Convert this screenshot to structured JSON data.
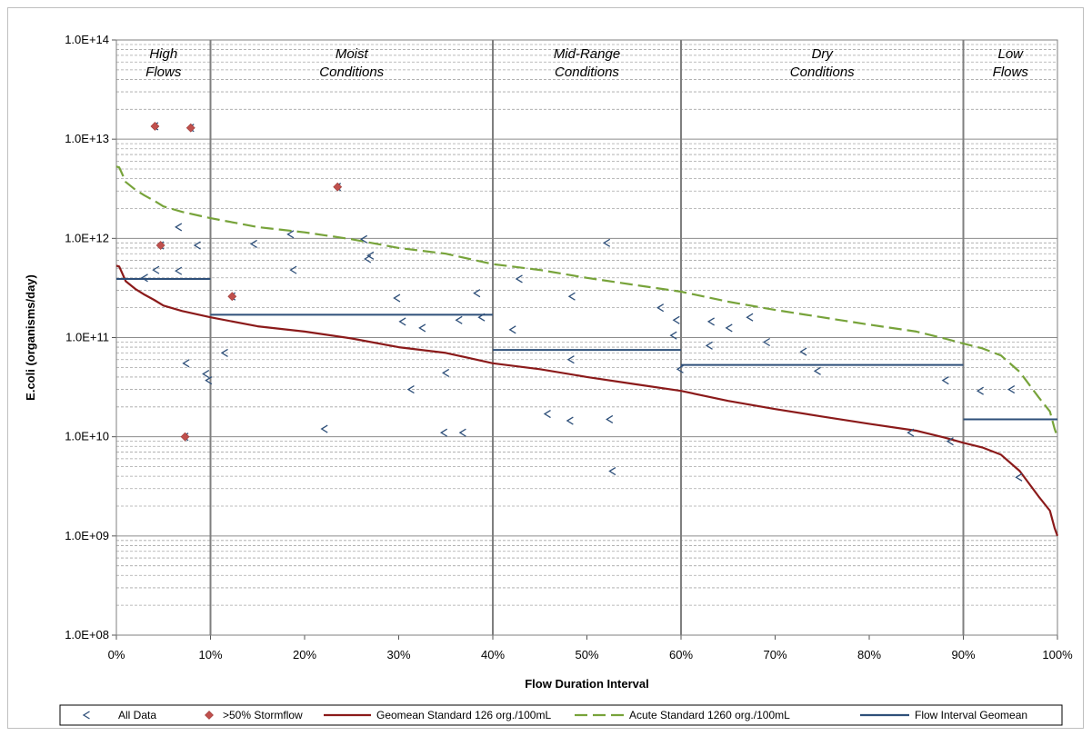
{
  "chart_data": {
    "type": "scatter",
    "xlabel": "Flow Duration Interval",
    "ylabel": "E.coli (organisms/day)",
    "x_ticks": [
      "0%",
      "10%",
      "20%",
      "30%",
      "40%",
      "50%",
      "60%",
      "70%",
      "80%",
      "90%",
      "100%"
    ],
    "y_ticks": [
      "1.0E+08",
      "1.0E+09",
      "1.0E+10",
      "1.0E+11",
      "1.0E+12",
      "1.0E+13",
      "1.0E+14"
    ],
    "xlim": [
      0,
      100
    ],
    "ylim": [
      100000000.0,
      100000000000000.0
    ],
    "y_scale": "log",
    "grid": "log minor horizontal gridlines (dashed), major solid",
    "zones": [
      {
        "name": "High\nFlows",
        "from": 0,
        "to": 10
      },
      {
        "name": "Moist\nConditions",
        "from": 10,
        "to": 40
      },
      {
        "name": "Mid-Range\nConditions",
        "from": 40,
        "to": 60
      },
      {
        "name": "Dry\nConditions",
        "from": 60,
        "to": 90
      },
      {
        "name": "Low\nFlows",
        "from": 90,
        "to": 100
      }
    ],
    "legend_position": "bottom",
    "legend": [
      {
        "name": "All Data",
        "marker": "open-chevron",
        "color": "#2e4f79"
      },
      {
        "name": ">50% Stormflow",
        "marker": "diamond",
        "color": "#c0504d"
      },
      {
        "name": "Geomean Standard 126 org./100mL",
        "marker": "solid-line",
        "color": "#8b1a1a"
      },
      {
        "name": "Acute Standard 1260 org./100mL",
        "marker": "dashed-line",
        "color": "#77a33a"
      },
      {
        "name": "Flow Interval Geomean",
        "marker": "solid-line",
        "color": "#2e4f79"
      }
    ],
    "series": [
      {
        "name": "All Data",
        "points": [
          [
            3,
            400000000000.0
          ],
          [
            4.2,
            480000000000.0
          ],
          [
            4.1,
            13500000000000.0
          ],
          [
            4.7,
            850000000000.0
          ],
          [
            6.6,
            470000000000.0
          ],
          [
            6.6,
            1300000000000.0
          ],
          [
            7.4,
            55000000000.0
          ],
          [
            7.3,
            10000000000.0
          ],
          [
            7.9,
            13000000000000.0
          ],
          [
            8.6,
            850000000000.0
          ],
          [
            9.5,
            43000000000.0
          ],
          [
            9.8,
            37000000000.0
          ],
          [
            11.5,
            70000000000.0
          ],
          [
            12.3,
            260000000000.0
          ],
          [
            14.6,
            880000000000.0
          ],
          [
            18.5,
            1100000000000.0
          ],
          [
            18.8,
            480000000000.0
          ],
          [
            22.1,
            12000000000.0
          ],
          [
            23.5,
            3300000000000.0
          ],
          [
            26.3,
            980000000000.0
          ],
          [
            26.7,
            620000000000.0
          ],
          [
            27,
            670000000000.0
          ],
          [
            29.8,
            250000000000.0
          ],
          [
            30.4,
            145000000000.0
          ],
          [
            31.3,
            30000000000.0
          ],
          [
            32.5,
            125000000000.0
          ],
          [
            34.8,
            11000000000.0
          ],
          [
            35,
            44000000000.0
          ],
          [
            36.4,
            150000000000.0
          ],
          [
            36.8,
            11000000000.0
          ],
          [
            38.3,
            280000000000.0
          ],
          [
            38.8,
            160000000000.0
          ],
          [
            42.1,
            120000000000.0
          ],
          [
            42.8,
            390000000000.0
          ],
          [
            45.8,
            17000000000.0
          ],
          [
            48.2,
            14500000000.0
          ],
          [
            48.3,
            60000000000.0
          ],
          [
            48.4,
            260000000000.0
          ],
          [
            52.1,
            900000000000.0
          ],
          [
            52.4,
            15000000000.0
          ],
          [
            52.7,
            4500000000.0
          ],
          [
            57.8,
            200000000000.0
          ],
          [
            59.2,
            105000000000.0
          ],
          [
            59.5,
            150000000000.0
          ],
          [
            59.9,
            48000000000.0
          ],
          [
            63,
            83000000000.0
          ],
          [
            63.2,
            145000000000.0
          ],
          [
            65.1,
            125000000000.0
          ],
          [
            67.3,
            160000000000.0
          ],
          [
            69.1,
            90000000000.0
          ],
          [
            73,
            72000000000.0
          ],
          [
            74.5,
            46000000000.0
          ],
          [
            84.4,
            11000000000.0
          ],
          [
            88.1,
            37000000000.0
          ],
          [
            88.6,
            9000000000.0
          ],
          [
            91.8,
            29000000000.0
          ],
          [
            95.1,
            30000000000.0
          ],
          [
            95.9,
            3900000000.0
          ]
        ]
      },
      {
        "name": ">50% Stormflow",
        "points": [
          [
            4.1,
            13500000000000.0
          ],
          [
            4.7,
            850000000000.0
          ],
          [
            7.3,
            10000000000.0
          ],
          [
            7.9,
            13000000000000.0
          ],
          [
            12.3,
            260000000000.0
          ],
          [
            23.5,
            3300000000000.0
          ]
        ]
      },
      {
        "name": "Geomean Standard 126 org./100mL",
        "points": [
          [
            0,
            530000000000.0
          ],
          [
            0.3,
            520000000000.0
          ],
          [
            0.6,
            450000000000.0
          ],
          [
            1,
            370000000000.0
          ],
          [
            2,
            310000000000.0
          ],
          [
            3,
            270000000000.0
          ],
          [
            4,
            240000000000.0
          ],
          [
            5,
            210000000000.0
          ],
          [
            7,
            185000000000.0
          ],
          [
            10,
            160000000000.0
          ],
          [
            15,
            130000000000.0
          ],
          [
            20,
            115000000000.0
          ],
          [
            25,
            98000000000.0
          ],
          [
            30,
            80000000000.0
          ],
          [
            35,
            70000000000.0
          ],
          [
            40,
            55000000000.0
          ],
          [
            45,
            48000000000.0
          ],
          [
            50,
            40000000000.0
          ],
          [
            55,
            34000000000.0
          ],
          [
            60,
            29000000000.0
          ],
          [
            65,
            23000000000.0
          ],
          [
            70,
            19000000000.0
          ],
          [
            75,
            16000000000.0
          ],
          [
            80,
            13500000000.0
          ],
          [
            85,
            11500000000.0
          ],
          [
            88,
            9800000000.0
          ],
          [
            90,
            8700000000.0
          ],
          [
            92,
            7800000000.0
          ],
          [
            94,
            6600000000.0
          ],
          [
            96,
            4500000000.0
          ],
          [
            98,
            2500000000.0
          ],
          [
            99.2,
            1800000000.0
          ],
          [
            99.7,
            1200000000.0
          ],
          [
            100,
            1000000000.0
          ]
        ]
      },
      {
        "name": "Acute Standard 1260 org./100mL",
        "points": [
          [
            0,
            5300000000000.0
          ],
          [
            0.3,
            5200000000000.0
          ],
          [
            0.6,
            4500000000000.0
          ],
          [
            1,
            3700000000000.0
          ],
          [
            2,
            3100000000000.0
          ],
          [
            3,
            2700000000000.0
          ],
          [
            4,
            2400000000000.0
          ],
          [
            5,
            2100000000000.0
          ],
          [
            7,
            1850000000000.0
          ],
          [
            10,
            1600000000000.0
          ],
          [
            15,
            1300000000000.0
          ],
          [
            20,
            1150000000000.0
          ],
          [
            25,
            980000000000.0
          ],
          [
            30,
            800000000000.0
          ],
          [
            35,
            700000000000.0
          ],
          [
            40,
            550000000000.0
          ],
          [
            45,
            480000000000.0
          ],
          [
            50,
            400000000000.0
          ],
          [
            55,
            340000000000.0
          ],
          [
            60,
            290000000000.0
          ],
          [
            65,
            230000000000.0
          ],
          [
            70,
            190000000000.0
          ],
          [
            75,
            160000000000.0
          ],
          [
            80,
            135000000000.0
          ],
          [
            85,
            115000000000.0
          ],
          [
            88,
            98000000000.0
          ],
          [
            90,
            87000000000.0
          ],
          [
            92,
            78000000000.0
          ],
          [
            94,
            66000000000.0
          ],
          [
            96,
            45000000000.0
          ],
          [
            98,
            25000000000.0
          ],
          [
            99.2,
            18000000000.0
          ],
          [
            99.7,
            12000000000.0
          ],
          [
            100,
            10000000000.0
          ]
        ]
      },
      {
        "name": "Flow Interval Geomean",
        "segments": [
          {
            "from": 0,
            "to": 10,
            "value": 390000000000.0
          },
          {
            "from": 10,
            "to": 40,
            "value": 170000000000.0
          },
          {
            "from": 40,
            "to": 60,
            "value": 75000000000.0
          },
          {
            "from": 60,
            "to": 90,
            "value": 53000000000.0
          },
          {
            "from": 90,
            "to": 100,
            "value": 15000000000.0
          }
        ]
      }
    ]
  }
}
